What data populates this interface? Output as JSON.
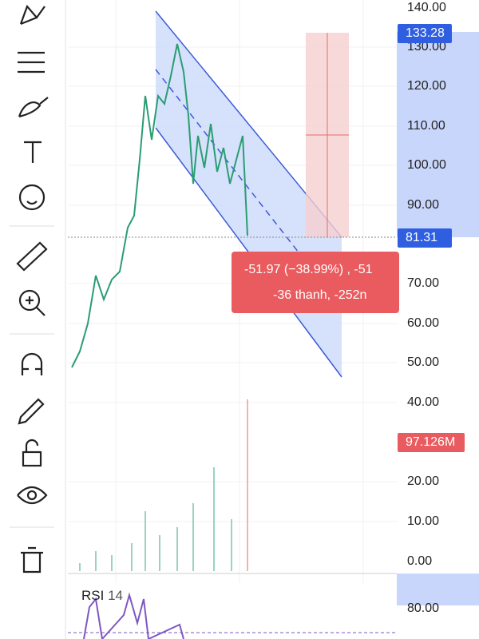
{
  "price_axis": [
    "140.00",
    "130.00",
    "120.00",
    "110.00",
    "100.00",
    "90.00",
    "70.00",
    "60.00",
    "50.00",
    "40.00"
  ],
  "volume_axis": [
    "20.00",
    "10.00",
    "0.00"
  ],
  "rsi": {
    "name": "RSI",
    "period": "14",
    "axis": [
      "80.00"
    ]
  },
  "badges": {
    "high": "133.28",
    "last": "81.31",
    "volume": "97.126M"
  },
  "measure": {
    "line1": "-51.97 (−38.99%) , -51",
    "line2": "-36 thanh, -252n"
  }
}
